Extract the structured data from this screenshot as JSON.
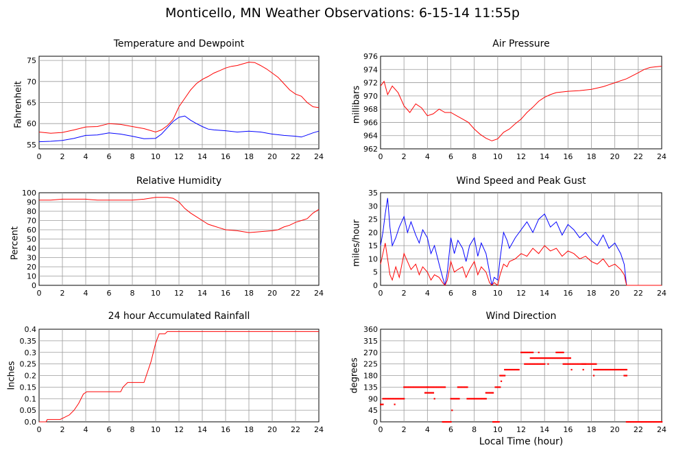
{
  "title": "Monticello, MN Weather Observations: 6-15-14 11:55p",
  "xlabel": "Local Time (hour)",
  "colors": {
    "series_red": "#ff0000",
    "series_blue": "#0000ff",
    "grid": "#999999"
  },
  "chart_data": [
    {
      "id": "temp",
      "type": "line",
      "title": "Temperature and Dewpoint",
      "ylabel": "Fahrenheit",
      "xlim": [
        0,
        24
      ],
      "ylim": [
        54,
        76
      ],
      "xticks": [
        0,
        2,
        4,
        6,
        8,
        10,
        12,
        14,
        16,
        18,
        20,
        22,
        24
      ],
      "yticks": [
        55,
        60,
        65,
        70,
        75
      ],
      "grid": true,
      "series": [
        {
          "color": "#ff0000",
          "x": [
            0,
            1,
            2,
            3,
            4,
            5,
            6,
            7,
            8,
            9,
            10,
            10.5,
            11,
            11.5,
            12,
            12.5,
            13,
            13.5,
            14,
            14.5,
            15,
            15.5,
            16,
            16.5,
            17,
            17.5,
            18,
            18.5,
            19,
            19.5,
            20,
            20.5,
            21,
            21.5,
            22,
            22.5,
            23,
            23.5,
            24
          ],
          "y": [
            58,
            57.7,
            57.9,
            58.5,
            59.2,
            59.3,
            60,
            59.8,
            59.3,
            58.8,
            58,
            58.5,
            59.5,
            61,
            64,
            66,
            68,
            69.5,
            70.5,
            71.2,
            72,
            72.6,
            73.2,
            73.6,
            73.8,
            74.2,
            74.6,
            74.5,
            73.8,
            73,
            72,
            71,
            69.5,
            68,
            67,
            66.5,
            65,
            64,
            63.8
          ]
        },
        {
          "color": "#0000ff",
          "x": [
            0,
            1,
            2,
            3,
            4,
            5,
            6,
            7,
            8,
            9,
            10,
            10.5,
            11,
            11.5,
            12,
            12.5,
            13,
            13.5,
            14,
            14.5,
            15,
            16,
            17,
            18,
            19,
            20,
            21,
            22,
            22.5,
            23,
            23.5,
            24
          ],
          "y": [
            55.7,
            55.8,
            56,
            56.5,
            57.2,
            57.3,
            57.8,
            57.5,
            57,
            56.4,
            56.5,
            57.5,
            59,
            60.5,
            61.5,
            61.8,
            60.8,
            60,
            59.3,
            58.7,
            58.5,
            58.3,
            58,
            58.2,
            58,
            57.5,
            57.2,
            57,
            56.8,
            57.3,
            57.8,
            58.2
          ]
        }
      ]
    },
    {
      "id": "pressure",
      "type": "line",
      "title": "Air Pressure",
      "ylabel": "millibars",
      "xlim": [
        0,
        24
      ],
      "ylim": [
        962,
        976
      ],
      "xticks": [
        0,
        2,
        4,
        6,
        8,
        10,
        12,
        14,
        16,
        18,
        20,
        22,
        24
      ],
      "yticks": [
        962,
        964,
        966,
        968,
        970,
        972,
        974,
        976
      ],
      "grid": true,
      "series": [
        {
          "color": "#ff0000",
          "x": [
            0,
            0.3,
            0.6,
            1,
            1.5,
            2,
            2.5,
            3,
            3.5,
            4,
            4.5,
            5,
            5.5,
            6,
            6.5,
            7,
            7.5,
            8,
            8.5,
            9,
            9.5,
            10,
            10.5,
            11,
            11.5,
            12,
            12.5,
            13,
            13.5,
            14,
            14.5,
            15,
            16,
            17,
            18,
            19,
            20,
            21,
            22,
            22.5,
            23,
            23.5,
            24
          ],
          "y": [
            971.5,
            972.2,
            970.2,
            971.5,
            970.5,
            968.5,
            967.5,
            968.8,
            968.2,
            967,
            967.3,
            968,
            967.5,
            967.5,
            967,
            966.5,
            966,
            965,
            964.2,
            963.6,
            963.2,
            963.5,
            964.5,
            965,
            965.8,
            966.5,
            967.5,
            968.3,
            969.2,
            969.8,
            970.2,
            970.5,
            970.7,
            970.8,
            971,
            971.4,
            972,
            972.6,
            973.5,
            974,
            974.3,
            974.4,
            974.5
          ]
        }
      ]
    },
    {
      "id": "humidity",
      "type": "line",
      "title": "Relative Humidity",
      "ylabel": "Percent",
      "xlim": [
        0,
        24
      ],
      "ylim": [
        0,
        100
      ],
      "xticks": [
        0,
        2,
        4,
        6,
        8,
        10,
        12,
        14,
        16,
        18,
        20,
        22,
        24
      ],
      "yticks": [
        0,
        10,
        20,
        30,
        40,
        50,
        60,
        70,
        80,
        90,
        100
      ],
      "grid": true,
      "series": [
        {
          "color": "#ff0000",
          "x": [
            0,
            1,
            2,
            3,
            4,
            5,
            6,
            7,
            8,
            9,
            10,
            10.5,
            11,
            11.5,
            12,
            12.5,
            13,
            13.5,
            14,
            14.5,
            15,
            15.5,
            16,
            17,
            18,
            19,
            20,
            20.5,
            21,
            21.5,
            22,
            22.5,
            23,
            23.5,
            24
          ],
          "y": [
            92,
            92,
            93,
            93,
            93,
            92,
            92,
            92,
            92,
            93,
            95,
            95,
            95,
            94,
            90,
            83,
            78,
            74,
            70,
            66,
            64,
            62,
            60,
            59,
            57,
            58,
            59,
            60,
            63,
            65,
            68,
            70,
            72,
            78,
            82
          ]
        }
      ]
    },
    {
      "id": "wind",
      "type": "line",
      "title": "Wind Speed and Peak Gust",
      "ylabel": "miles/hour",
      "xlim": [
        0,
        24
      ],
      "ylim": [
        0,
        35
      ],
      "xticks": [
        0,
        2,
        4,
        6,
        8,
        10,
        12,
        14,
        16,
        18,
        20,
        22,
        24
      ],
      "yticks": [
        0,
        5,
        10,
        15,
        20,
        25,
        30,
        35
      ],
      "grid": true,
      "series": [
        {
          "color": "#0000ff",
          "x": [
            0,
            0.2,
            0.4,
            0.6,
            0.8,
            1,
            1.3,
            1.6,
            2,
            2.3,
            2.6,
            3,
            3.3,
            3.6,
            4,
            4.3,
            4.6,
            5,
            5.3,
            5.5,
            5.7,
            6,
            6.3,
            6.6,
            7,
            7.3,
            7.6,
            8,
            8.3,
            8.6,
            9,
            9.3,
            9.5,
            9.7,
            10,
            10.2,
            10.5,
            10.8,
            11,
            11.5,
            12,
            12.5,
            13,
            13.5,
            14,
            14.5,
            15,
            15.5,
            16,
            16.5,
            17,
            17.5,
            18,
            18.5,
            19,
            19.5,
            20,
            20.5,
            20.8,
            21,
            22,
            23,
            24
          ],
          "y": [
            15,
            20,
            27,
            33,
            22,
            15,
            18,
            22,
            26,
            20,
            24,
            19,
            16,
            21,
            18,
            12,
            15,
            8,
            3,
            0,
            5,
            18,
            12,
            17,
            14,
            9,
            15,
            18,
            11,
            16,
            12,
            5,
            0,
            3,
            2,
            10,
            20,
            17,
            14,
            18,
            21,
            24,
            20,
            25,
            27,
            22,
            24,
            19,
            23,
            21,
            18,
            20,
            17,
            15,
            19,
            14,
            16,
            12,
            8,
            0,
            0,
            0,
            0
          ]
        },
        {
          "color": "#ff0000",
          "x": [
            0,
            0.2,
            0.4,
            0.6,
            0.8,
            1,
            1.3,
            1.6,
            2,
            2.3,
            2.6,
            3,
            3.3,
            3.6,
            4,
            4.3,
            4.6,
            5,
            5.3,
            5.5,
            5.7,
            6,
            6.3,
            6.6,
            7,
            7.3,
            7.6,
            8,
            8.3,
            8.6,
            9,
            9.3,
            9.5,
            9.7,
            10,
            10.2,
            10.5,
            10.8,
            11,
            11.5,
            12,
            12.5,
            13,
            13.5,
            14,
            14.5,
            15,
            15.5,
            16,
            16.5,
            17,
            17.5,
            18,
            18.5,
            19,
            19.5,
            20,
            20.5,
            20.8,
            21,
            22,
            23,
            24
          ],
          "y": [
            8,
            12,
            16,
            10,
            4,
            2,
            7,
            3,
            12,
            9,
            6,
            8,
            4,
            7,
            5,
            2,
            4,
            3,
            1,
            0,
            2,
            9,
            5,
            6,
            7,
            3,
            6,
            9,
            4,
            7,
            5,
            1,
            0,
            1,
            0,
            4,
            8,
            7,
            9,
            10,
            12,
            11,
            14,
            12,
            15,
            13,
            14,
            11,
            13,
            12,
            10,
            11,
            9,
            8,
            10,
            7,
            8,
            6,
            4,
            0,
            0,
            0,
            0
          ]
        }
      ]
    },
    {
      "id": "rain",
      "type": "line",
      "title": "24 hour Accumulated Rainfall",
      "ylabel": "Inches",
      "xlim": [
        0,
        24
      ],
      "ylim": [
        0,
        0.4
      ],
      "xticks": [
        0,
        2,
        4,
        6,
        8,
        10,
        12,
        14,
        16,
        18,
        20,
        22,
        24
      ],
      "yticks": [
        0,
        0.05,
        0.1,
        0.15,
        0.2,
        0.25,
        0.3,
        0.35,
        0.4
      ],
      "ytick_labels": [
        "0.0",
        "0.05",
        "0.1",
        "0.15",
        "0.2",
        "0.25",
        "0.3",
        "0.35",
        "0.4"
      ],
      "grid": true,
      "series": [
        {
          "color": "#ff0000",
          "x": [
            0,
            0.6,
            0.7,
            1.8,
            2.2,
            2.6,
            3,
            3.4,
            3.8,
            4.1,
            6,
            7,
            7.2,
            7.6,
            8,
            9,
            9.2,
            9.6,
            10,
            10.3,
            10.8,
            11,
            24
          ],
          "y": [
            0,
            0,
            0.01,
            0.01,
            0.02,
            0.03,
            0.05,
            0.08,
            0.12,
            0.13,
            0.13,
            0.13,
            0.15,
            0.17,
            0.17,
            0.17,
            0.2,
            0.26,
            0.34,
            0.38,
            0.38,
            0.39,
            0.39
          ]
        }
      ]
    },
    {
      "id": "direction",
      "type": "scatter",
      "title": "Wind Direction",
      "ylabel": "degrees",
      "xlim": [
        0,
        24
      ],
      "ylim": [
        0,
        360
      ],
      "xticks": [
        0,
        2,
        4,
        6,
        8,
        10,
        12,
        14,
        16,
        18,
        20,
        22,
        24
      ],
      "yticks": [
        0,
        45,
        90,
        135,
        180,
        225,
        270,
        315,
        360
      ],
      "grid": true,
      "series": [
        {
          "color": "#ff0000",
          "segments": [
            {
              "x0": 0,
              "x1": 0.2,
              "y": 68
            },
            {
              "x0": 0.2,
              "x1": 2,
              "y": 90
            },
            {
              "x0": 2,
              "x1": 4,
              "y": 135
            },
            {
              "x0": 3.8,
              "x1": 4.5,
              "y": 113
            },
            {
              "x0": 4,
              "x1": 5.5,
              "y": 135
            },
            {
              "x0": 5.3,
              "x1": 6,
              "y": 0
            },
            {
              "x0": 6,
              "x1": 6.7,
              "y": 90
            },
            {
              "x0": 6.6,
              "x1": 7.4,
              "y": 135
            },
            {
              "x0": 7.4,
              "x1": 9,
              "y": 90
            },
            {
              "x0": 9,
              "x1": 9.6,
              "y": 113
            },
            {
              "x0": 9.6,
              "x1": 10.1,
              "y": 0
            },
            {
              "x0": 9.8,
              "x1": 10.2,
              "y": 135
            },
            {
              "x0": 10.2,
              "x1": 10.6,
              "y": 180
            },
            {
              "x0": 10.6,
              "x1": 11.8,
              "y": 203
            },
            {
              "x0": 12,
              "x1": 13,
              "y": 270
            },
            {
              "x0": 12.3,
              "x1": 14,
              "y": 225
            },
            {
              "x0": 12.8,
              "x1": 16.2,
              "y": 248
            },
            {
              "x0": 15,
              "x1": 15.6,
              "y": 270
            },
            {
              "x0": 15.6,
              "x1": 17.5,
              "y": 225
            },
            {
              "x0": 17.2,
              "x1": 18.4,
              "y": 225
            },
            {
              "x0": 18.2,
              "x1": 21,
              "y": 203
            },
            {
              "x0": 20.8,
              "x1": 21,
              "y": 180
            },
            {
              "x0": 21,
              "x1": 24,
              "y": 0
            }
          ],
          "points": [
            {
              "x": 0.05,
              "y": 68
            },
            {
              "x": 1.2,
              "y": 68
            },
            {
              "x": 6.1,
              "y": 45
            },
            {
              "x": 4.6,
              "y": 90
            },
            {
              "x": 10.3,
              "y": 158
            },
            {
              "x": 13.5,
              "y": 270
            },
            {
              "x": 17.3,
              "y": 203
            },
            {
              "x": 18.2,
              "y": 180
            },
            {
              "x": 16.3,
              "y": 203
            },
            {
              "x": 14.3,
              "y": 225
            }
          ]
        }
      ]
    }
  ]
}
